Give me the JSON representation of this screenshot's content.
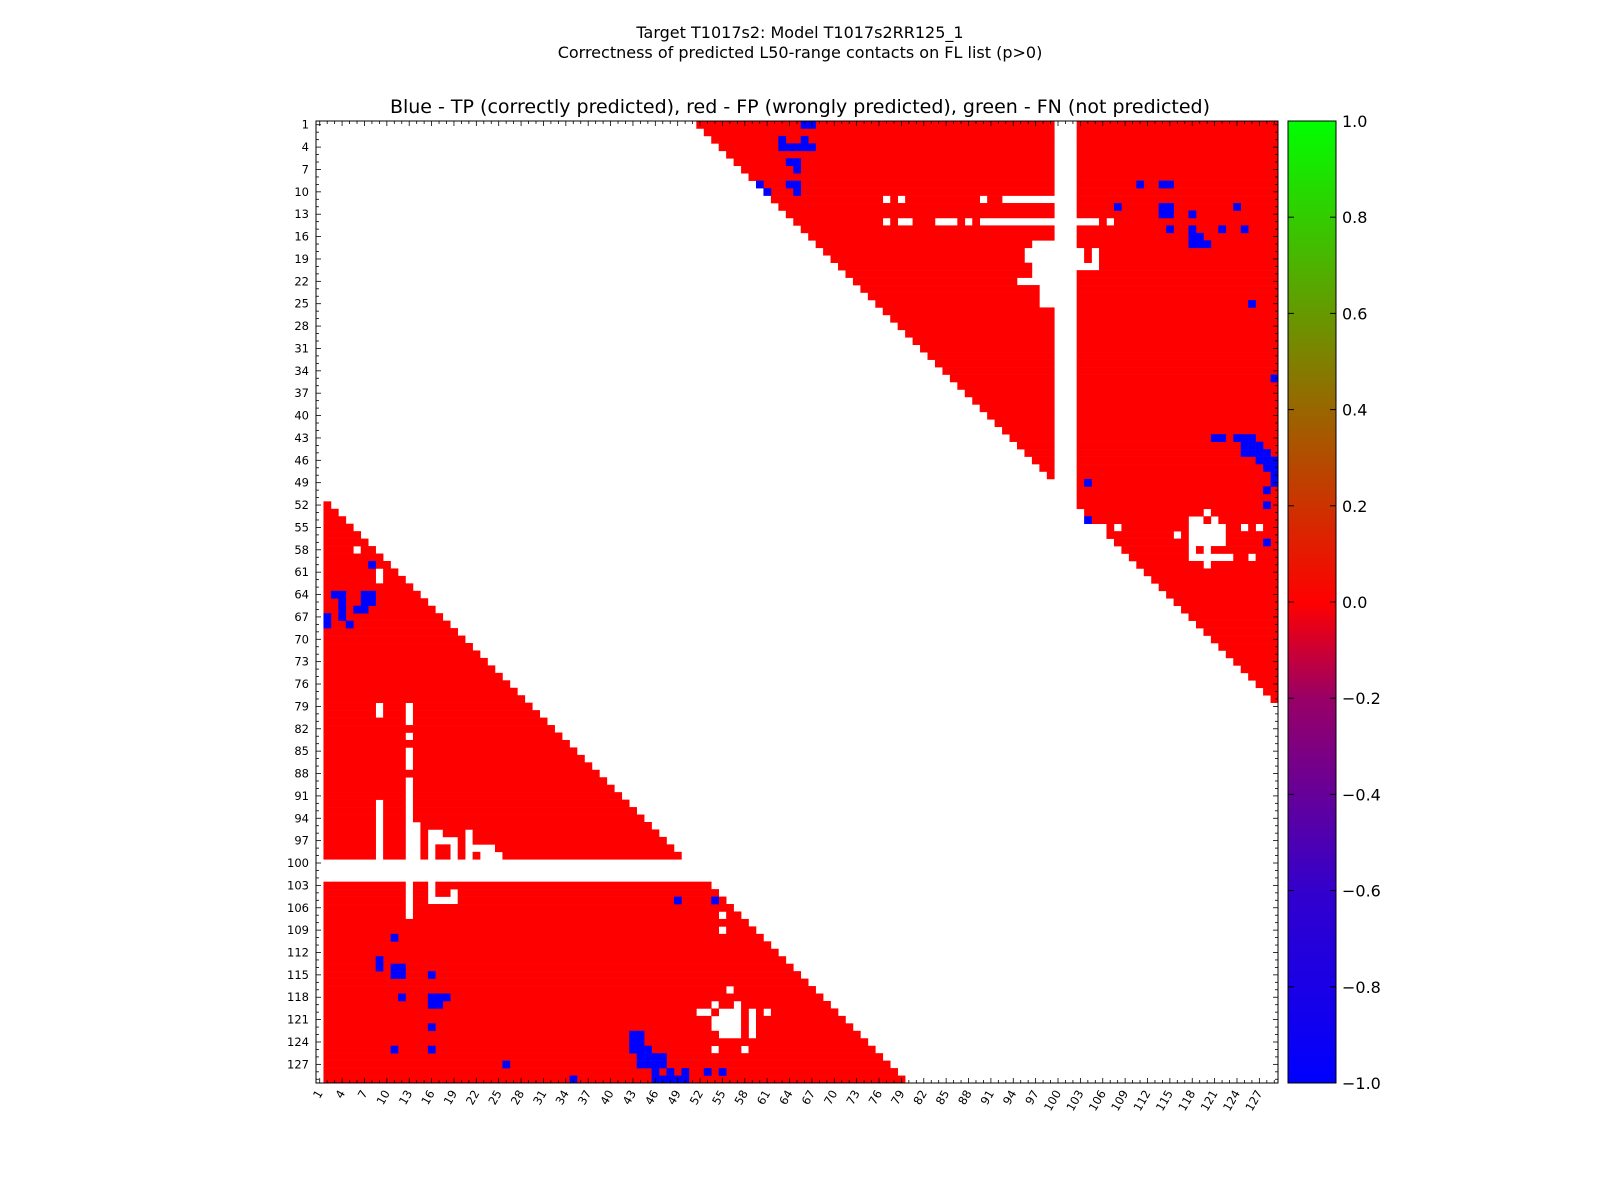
{
  "chart_data": {
    "type": "heatmap",
    "title": "Target T1017s2: Model T1017s2RR125_1",
    "title2": "Correctness of predicted L50-range contacts on FL list (p>0)",
    "subtitle": "Blue - TP (correctly predicted), red - FP (wrongly predicted), green - FN (not predicted)",
    "n": 129,
    "x_ticks": [
      "1",
      "4",
      "7",
      "10",
      "13",
      "16",
      "19",
      "22",
      "25",
      "28",
      "31",
      "34",
      "37",
      "40",
      "43",
      "46",
      "49",
      "52",
      "55",
      "58",
      "61",
      "64",
      "67",
      "70",
      "73",
      "76",
      "79",
      "82",
      "85",
      "88",
      "91",
      "94",
      "97",
      "100",
      "103",
      "106",
      "109",
      "112",
      "115",
      "118",
      "121",
      "124",
      "127"
    ],
    "y_ticks": [
      "1",
      "4",
      "7",
      "10",
      "13",
      "16",
      "19",
      "22",
      "25",
      "28",
      "31",
      "34",
      "37",
      "40",
      "43",
      "46",
      "49",
      "52",
      "55",
      "58",
      "61",
      "64",
      "67",
      "70",
      "73",
      "76",
      "79",
      "82",
      "85",
      "88",
      "91",
      "94",
      "97",
      "100",
      "103",
      "106",
      "109",
      "112",
      "115",
      "118",
      "121",
      "124",
      "127"
    ],
    "colorbar": {
      "min": -1.0,
      "max": 1.0,
      "ticks": [
        "1.0",
        "0.8",
        "0.6",
        "0.4",
        "0.2",
        "0.0",
        "−0.2",
        "−0.4",
        "−0.6",
        "−0.8",
        "−1.0"
      ],
      "low_color": "#0000ff",
      "mid_color": "#ff0000",
      "high_color": "#00ff00"
    },
    "colors": {
      "tp": "#0000ff",
      "fp": "#ff0000",
      "fn": "#00ff00"
    },
    "fp_regions": [
      {
        "region": "upper",
        "rows": [
          1,
          50
        ],
        "cols": [
          52,
          99
        ],
        "start_col_at_row1": 52
      },
      {
        "region": "upper",
        "rows": [
          1,
          77
        ],
        "cols": [
          103,
          129
        ],
        "start_col_at_row1": 52
      },
      {
        "region": "lower",
        "rows": [
          52,
          99
        ],
        "cols": [
          2,
          49
        ],
        "end_col_at_row52": 2
      },
      {
        "region": "lower",
        "rows": [
          103,
          129
        ],
        "cols": [
          2,
          79
        ],
        "end_col_at_row52": 2
      }
    ],
    "blank_cells": [
      [
        8,
        57
      ],
      [
        11,
        77
      ],
      [
        11,
        79
      ],
      [
        11,
        90
      ],
      [
        11,
        93
      ],
      [
        11,
        94
      ],
      [
        11,
        95
      ],
      [
        11,
        96
      ],
      [
        11,
        97
      ],
      [
        11,
        98
      ],
      [
        11,
        99
      ],
      [
        14,
        77
      ],
      [
        14,
        79
      ],
      [
        14,
        80
      ],
      [
        14,
        84
      ],
      [
        14,
        85
      ],
      [
        14,
        86
      ],
      [
        14,
        88
      ],
      [
        14,
        90
      ],
      [
        14,
        91
      ],
      [
        14,
        92
      ],
      [
        14,
        93
      ],
      [
        14,
        94
      ],
      [
        14,
        95
      ],
      [
        14,
        96
      ],
      [
        14,
        97
      ],
      [
        14,
        98
      ],
      [
        14,
        99
      ],
      [
        14,
        103
      ],
      [
        14,
        104
      ],
      [
        14,
        105
      ],
      [
        14,
        107
      ],
      [
        17,
        97
      ],
      [
        17,
        98
      ],
      [
        17,
        99
      ],
      [
        18,
        96
      ],
      [
        18,
        97
      ],
      [
        18,
        98
      ],
      [
        18,
        99
      ],
      [
        18,
        103
      ],
      [
        18,
        105
      ],
      [
        19,
        96
      ],
      [
        19,
        97
      ],
      [
        19,
        98
      ],
      [
        19,
        99
      ],
      [
        19,
        103
      ],
      [
        19,
        105
      ],
      [
        20,
        103
      ],
      [
        20,
        104
      ],
      [
        20,
        105
      ],
      [
        20,
        97
      ],
      [
        20,
        98
      ],
      [
        20,
        99
      ],
      [
        21,
        97
      ],
      [
        21,
        98
      ],
      [
        21,
        99
      ],
      [
        22,
        95
      ],
      [
        22,
        96
      ],
      [
        22,
        97
      ],
      [
        22,
        98
      ],
      [
        22,
        99
      ],
      [
        23,
        98
      ],
      [
        23,
        99
      ],
      [
        24,
        98
      ],
      [
        24,
        99
      ],
      [
        25,
        98
      ],
      [
        25,
        99
      ],
      [
        53,
        120
      ],
      [
        54,
        118
      ],
      [
        54,
        119
      ],
      [
        54,
        121
      ],
      [
        55,
        104
      ],
      [
        55,
        106
      ],
      [
        55,
        108
      ],
      [
        55,
        118
      ],
      [
        55,
        119
      ],
      [
        55,
        120
      ],
      [
        55,
        121
      ],
      [
        55,
        122
      ],
      [
        55,
        125
      ],
      [
        55,
        127
      ],
      [
        56,
        116
      ],
      [
        56,
        118
      ],
      [
        56,
        119
      ],
      [
        56,
        120
      ],
      [
        56,
        121
      ],
      [
        56,
        122
      ],
      [
        57,
        118
      ],
      [
        57,
        119
      ],
      [
        57,
        120
      ],
      [
        57,
        121
      ],
      [
        57,
        122
      ],
      [
        58,
        118
      ],
      [
        58,
        120
      ],
      [
        59,
        118
      ],
      [
        59,
        119
      ],
      [
        59,
        120
      ],
      [
        59,
        121
      ],
      [
        59,
        122
      ],
      [
        59,
        123
      ],
      [
        59,
        126
      ],
      [
        60,
        120
      ],
      [
        58,
        6
      ],
      [
        61,
        9
      ],
      [
        62,
        9
      ],
      [
        79,
        9
      ],
      [
        79,
        13
      ],
      [
        80,
        9
      ],
      [
        80,
        13
      ],
      [
        81,
        13
      ],
      [
        83,
        13
      ],
      [
        85,
        13
      ],
      [
        86,
        13
      ],
      [
        87,
        13
      ],
      [
        89,
        13
      ],
      [
        90,
        13
      ],
      [
        91,
        13
      ],
      [
        92,
        9
      ],
      [
        92,
        13
      ],
      [
        93,
        9
      ],
      [
        93,
        13
      ],
      [
        94,
        9
      ],
      [
        94,
        13
      ],
      [
        95,
        9
      ],
      [
        95,
        13
      ],
      [
        95,
        14
      ],
      [
        96,
        9
      ],
      [
        96,
        13
      ],
      [
        96,
        14
      ],
      [
        96,
        16
      ],
      [
        96,
        17
      ],
      [
        96,
        21
      ],
      [
        97,
        9
      ],
      [
        97,
        13
      ],
      [
        97,
        14
      ],
      [
        97,
        16
      ],
      [
        97,
        17
      ],
      [
        97,
        18
      ],
      [
        97,
        19
      ],
      [
        97,
        21
      ],
      [
        98,
        9
      ],
      [
        98,
        13
      ],
      [
        98,
        14
      ],
      [
        98,
        16
      ],
      [
        98,
        19
      ],
      [
        98,
        21
      ],
      [
        98,
        22
      ],
      [
        98,
        23
      ],
      [
        98,
        24
      ],
      [
        99,
        9
      ],
      [
        99,
        13
      ],
      [
        99,
        14
      ],
      [
        99,
        16
      ],
      [
        99,
        19
      ],
      [
        99,
        21
      ],
      [
        99,
        23
      ],
      [
        99,
        24
      ],
      [
        99,
        25
      ],
      [
        103,
        13
      ],
      [
        103,
        16
      ],
      [
        104,
        13
      ],
      [
        104,
        16
      ],
      [
        104,
        19
      ],
      [
        105,
        13
      ],
      [
        105,
        16
      ],
      [
        105,
        17
      ],
      [
        105,
        18
      ],
      [
        105,
        19
      ],
      [
        106,
        13
      ],
      [
        107,
        13
      ],
      [
        107,
        55
      ],
      [
        109,
        55
      ],
      [
        117,
        56
      ],
      [
        119,
        54
      ],
      [
        119,
        57
      ],
      [
        120,
        52
      ],
      [
        120,
        53
      ],
      [
        120,
        55
      ],
      [
        120,
        56
      ],
      [
        120,
        57
      ],
      [
        120,
        59
      ],
      [
        120,
        61
      ],
      [
        121,
        54
      ],
      [
        121,
        55
      ],
      [
        121,
        56
      ],
      [
        121,
        57
      ],
      [
        121,
        59
      ],
      [
        122,
        54
      ],
      [
        122,
        55
      ],
      [
        122,
        56
      ],
      [
        122,
        57
      ],
      [
        122,
        59
      ],
      [
        123,
        55
      ],
      [
        123,
        56
      ],
      [
        123,
        57
      ],
      [
        123,
        59
      ],
      [
        125,
        54
      ],
      [
        125,
        58
      ]
    ],
    "tp_cells": [
      [
        1,
        66
      ],
      [
        1,
        67
      ],
      [
        3,
        63
      ],
      [
        3,
        66
      ],
      [
        4,
        63
      ],
      [
        4,
        64
      ],
      [
        4,
        65
      ],
      [
        4,
        66
      ],
      [
        4,
        67
      ],
      [
        6,
        64
      ],
      [
        6,
        65
      ],
      [
        7,
        65
      ],
      [
        9,
        60
      ],
      [
        10,
        61
      ],
      [
        9,
        64
      ],
      [
        9,
        65
      ],
      [
        10,
        65
      ],
      [
        9,
        111
      ],
      [
        9,
        114
      ],
      [
        9,
        115
      ],
      [
        12,
        108
      ],
      [
        12,
        114
      ],
      [
        12,
        115
      ],
      [
        13,
        114
      ],
      [
        13,
        115
      ],
      [
        12,
        124
      ],
      [
        13,
        118
      ],
      [
        15,
        115
      ],
      [
        15,
        118
      ],
      [
        15,
        122
      ],
      [
        15,
        125
      ],
      [
        16,
        118
      ],
      [
        16,
        119
      ],
      [
        17,
        118
      ],
      [
        17,
        119
      ],
      [
        17,
        120
      ],
      [
        25,
        126
      ],
      [
        35,
        129
      ],
      [
        43,
        121
      ],
      [
        43,
        122
      ],
      [
        43,
        124
      ],
      [
        43,
        125
      ],
      [
        43,
        126
      ],
      [
        44,
        125
      ],
      [
        44,
        126
      ],
      [
        44,
        127
      ],
      [
        45,
        125
      ],
      [
        45,
        126
      ],
      [
        45,
        127
      ],
      [
        45,
        128
      ],
      [
        46,
        127
      ],
      [
        46,
        128
      ],
      [
        46,
        129
      ],
      [
        47,
        128
      ],
      [
        47,
        129
      ],
      [
        48,
        129
      ],
      [
        49,
        104
      ],
      [
        49,
        129
      ],
      [
        50,
        128
      ],
      [
        52,
        128
      ],
      [
        54,
        104
      ],
      [
        57,
        128
      ],
      [
        60,
        8
      ],
      [
        64,
        3
      ],
      [
        64,
        4
      ],
      [
        64,
        7
      ],
      [
        64,
        8
      ],
      [
        65,
        4
      ],
      [
        65,
        7
      ],
      [
        65,
        8
      ],
      [
        66,
        4
      ],
      [
        66,
        6
      ],
      [
        66,
        7
      ],
      [
        67,
        2
      ],
      [
        67,
        4
      ],
      [
        68,
        2
      ],
      [
        68,
        5
      ],
      [
        105,
        49
      ],
      [
        105,
        54
      ],
      [
        110,
        11
      ],
      [
        113,
        9
      ],
      [
        114,
        9
      ],
      [
        114,
        11
      ],
      [
        114,
        12
      ],
      [
        115,
        11
      ],
      [
        115,
        12
      ],
      [
        115,
        16
      ],
      [
        118,
        12
      ],
      [
        118,
        16
      ],
      [
        118,
        17
      ],
      [
        118,
        18
      ],
      [
        119,
        16
      ],
      [
        119,
        17
      ],
      [
        122,
        16
      ],
      [
        123,
        43
      ],
      [
        125,
        11
      ],
      [
        125,
        16
      ],
      [
        123,
        44
      ],
      [
        124,
        43
      ],
      [
        124,
        44
      ],
      [
        125,
        43
      ],
      [
        125,
        44
      ],
      [
        125,
        45
      ],
      [
        126,
        44
      ],
      [
        126,
        45
      ],
      [
        126,
        46
      ],
      [
        126,
        47
      ],
      [
        127,
        44
      ],
      [
        127,
        45
      ],
      [
        127,
        46
      ],
      [
        127,
        47
      ],
      [
        128,
        46
      ],
      [
        128,
        48
      ],
      [
        128,
        50
      ],
      [
        128,
        55
      ],
      [
        127,
        26
      ],
      [
        129,
        35
      ],
      [
        129,
        46
      ],
      [
        129,
        47
      ],
      [
        129,
        48
      ],
      [
        129,
        49
      ],
      [
        129,
        50
      ],
      [
        128,
        53
      ]
    ],
    "fn_cells": []
  }
}
